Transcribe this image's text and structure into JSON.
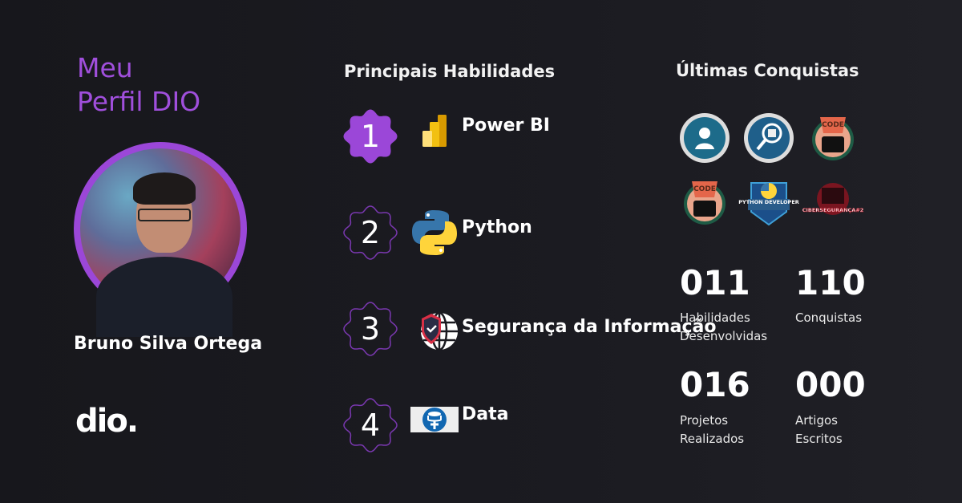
{
  "profile": {
    "title_line1": "Meu",
    "title_line2": "Perfil DIO",
    "name": "Bruno Silva Ortega",
    "logo_text": "dio."
  },
  "skills": {
    "heading": "Principais Habilidades",
    "items": [
      {
        "rank": "1",
        "label": "Power BI",
        "icon": "power-bi-icon",
        "highlighted": true
      },
      {
        "rank": "2",
        "label": "Python",
        "icon": "python-icon",
        "highlighted": false
      },
      {
        "rank": "3",
        "label": "Segurança da Informação",
        "icon": "security-shield-globe-icon",
        "highlighted": false
      },
      {
        "rank": "4",
        "label": "Data",
        "icon": "database-icon",
        "highlighted": false
      }
    ]
  },
  "achievements": {
    "heading": "Últimas Conquistas",
    "badges": [
      "cloud-user-badge",
      "search-puzzle-badge",
      "code-trophy-badge",
      "code-trophy-badge",
      "python-developer-badge",
      "ciberseguranca-2-badge"
    ],
    "badge_texts": {
      "python": "PYTHON DEVELOPER",
      "ciber": "CIBERSEGURANÇA#2",
      "code": "CODE"
    }
  },
  "stats": [
    {
      "value": "011",
      "label": "Habilidades Desenvolvidas"
    },
    {
      "value": "110",
      "label": "Conquistas"
    },
    {
      "value": "016",
      "label": "Projetos Realizados"
    },
    {
      "value": "000",
      "label": "Artigos Escritos"
    }
  ],
  "colors": {
    "accent": "#9b47d8",
    "background": "#1a1a20"
  }
}
